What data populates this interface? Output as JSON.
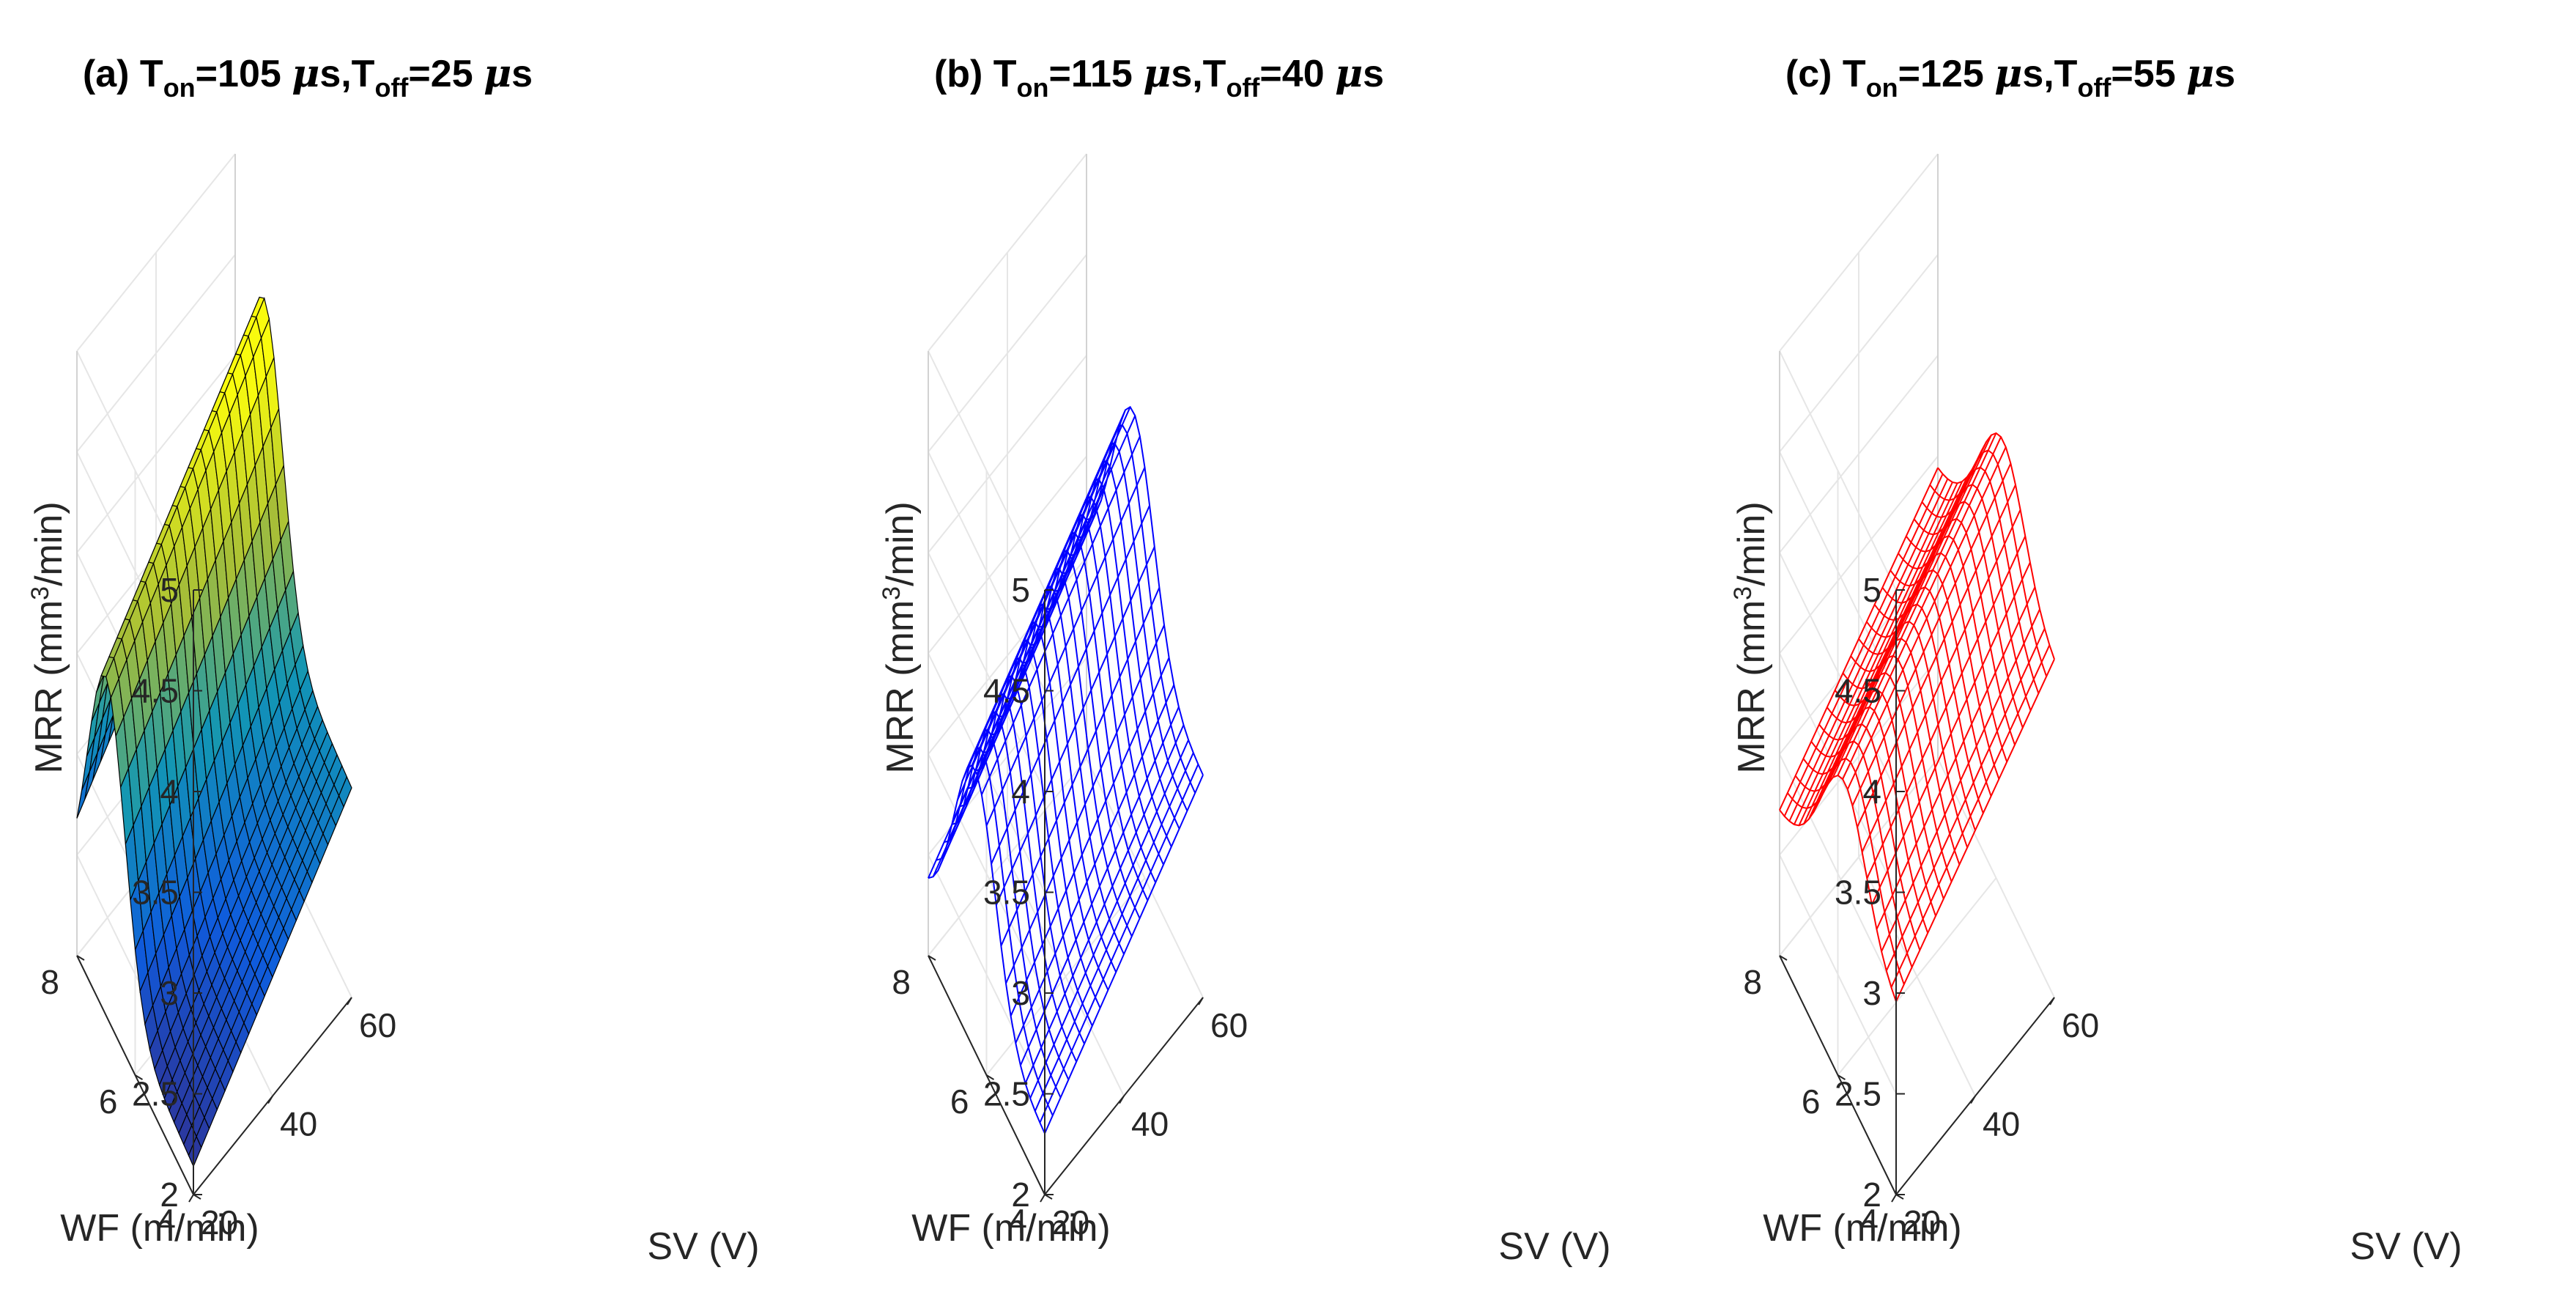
{
  "colors": {
    "panel_a_colormap": "parula",
    "panel_b_mesh": "#0000ff",
    "panel_c_mesh": "#ff0000",
    "grid": "#e6e6e6",
    "axis": "#262626"
  },
  "chart_data": [
    {
      "type": "surface",
      "style": "filled-surface",
      "title": {
        "prefix": "(a) T",
        "on_sub": "on",
        "on_val": "=105 ",
        "mu1": "μ",
        "mid": "s,T",
        "off_sub": "off",
        "off_val": "=25 ",
        "mu2": "μ",
        "suffix": "s"
      },
      "xlabel": "SV (V)",
      "ylabel": "WF (m/min)",
      "zlabel_main": "MRR (mm",
      "zlabel_sup": "3",
      "zlabel_tail": "/min)",
      "xlim": [
        20,
        60
      ],
      "ylim": [
        4,
        8
      ],
      "zlim": [
        2,
        5
      ],
      "xticks": [
        20,
        40,
        60
      ],
      "yticks": [
        4,
        6,
        8
      ],
      "zticks": [
        "2",
        "2.5",
        "3",
        "3.5",
        "4",
        "4.5",
        "5"
      ],
      "grid": true,
      "colormap": "parula",
      "surface": {
        "base": 1.75,
        "sv_coef": 0.0225,
        "wf_peak": 7.0,
        "wf_width": 0.9,
        "wf_amp": 1.45,
        "wf_slope": 0.03
      }
    },
    {
      "type": "surface",
      "style": "mesh",
      "title": {
        "prefix": "(b) T",
        "on_sub": "on",
        "on_val": "=115 ",
        "mu1": "μ",
        "mid": "s,T",
        "off_sub": "off",
        "off_val": "=40 ",
        "mu2": "μ",
        "suffix": "s"
      },
      "xlabel": "SV (V)",
      "ylabel": "WF (m/min)",
      "zlabel_main": "MRR (mm",
      "zlabel_sup": "3",
      "zlabel_tail": "/min)",
      "xlim": [
        20,
        60
      ],
      "ylim": [
        4,
        8
      ],
      "zlim": [
        2,
        5
      ],
      "xticks": [
        20,
        40,
        60
      ],
      "yticks": [
        4,
        6,
        8
      ],
      "zticks": [
        "2",
        "2.5",
        "3",
        "3.5",
        "4",
        "4.5",
        "5"
      ],
      "grid": true,
      "mesh_color": "#0000ff",
      "surface": {
        "base": 1.9,
        "sv_coef": 0.02,
        "wf_peak": 6.4,
        "wf_width": 1.0,
        "wf_amp": 1.1,
        "wf_slope": 0.0
      }
    },
    {
      "type": "surface",
      "style": "mesh",
      "title": {
        "prefix": "(c) T",
        "on_sub": "on",
        "on_val": "=125 ",
        "mu1": "μ",
        "mid": "s,T",
        "off_sub": "off",
        "off_val": "=55 ",
        "mu2": "μ",
        "suffix": "s"
      },
      "xlabel": "SV (V)",
      "ylabel": "WF (m/min)",
      "zlabel_main": "MRR (mm",
      "zlabel_sup": "3",
      "zlabel_tail": "/min)",
      "xlim": [
        20,
        60
      ],
      "ylim": [
        4,
        8
      ],
      "zlim": [
        2,
        5
      ],
      "xticks": [
        20,
        40,
        60
      ],
      "yticks": [
        4,
        6,
        8
      ],
      "zticks": [
        "2",
        "2.5",
        "3",
        "3.5",
        "4",
        "4.5",
        "5"
      ],
      "grid": true,
      "mesh_color": "#ff0000",
      "surface": {
        "base": 2.45,
        "sv_coef": 0.018,
        "wf_peak": 5.8,
        "wf_width": 1.1,
        "wf_amp": 0.7,
        "wf_slope": -0.05
      }
    }
  ]
}
